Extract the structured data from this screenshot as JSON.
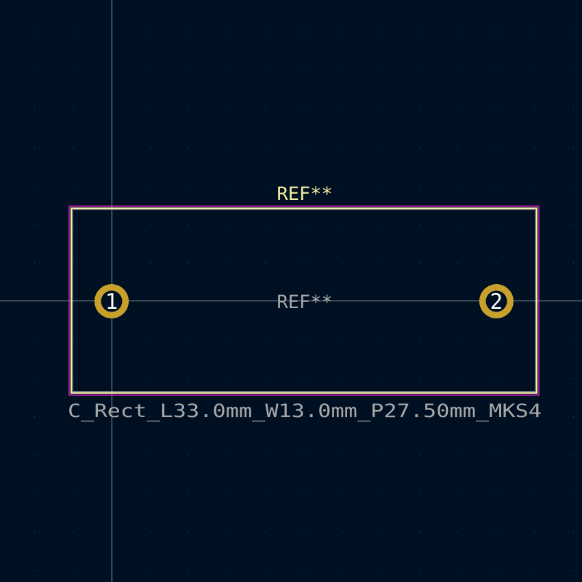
{
  "footprint": {
    "reference_top": "REF**",
    "reference_center": "REF**",
    "value": "C_Rect_L33.0mm_W13.0mm_P27.50mm_MKS4",
    "pads": [
      {
        "number": "1"
      },
      {
        "number": "2"
      }
    ]
  },
  "colors": {
    "background": "#001023",
    "grid_dot": "#4a5566",
    "crosshair": "#c8c8c8",
    "courtyard": "#ff26e2",
    "silkscreen": "#f2eda1",
    "fab_outline": "#c2c2c2",
    "pad": "#c8a02c",
    "pad_hole": "#001023",
    "pad_number": "#ffffff",
    "reference_top": "#f2eda1",
    "fab_text": "#a8a8a8"
  }
}
